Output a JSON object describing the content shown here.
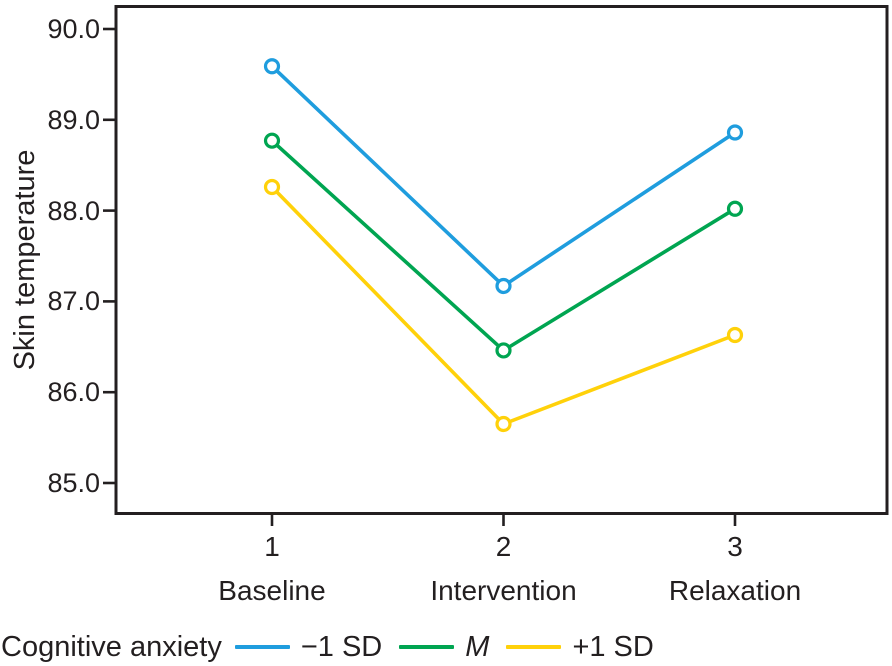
{
  "chart_data": {
    "type": "line",
    "title": "",
    "xlabel": "",
    "ylabel": "Skin temperature",
    "x": [
      1,
      2,
      3
    ],
    "x_tick_labels": [
      "1",
      "2",
      "3"
    ],
    "x_category_labels": [
      "Baseline",
      "Intervention",
      "Relaxation"
    ],
    "y_ticks": [
      90,
      89,
      88,
      87,
      86,
      85
    ],
    "y_tick_labels": [
      "90.0",
      "89.0",
      "88.0",
      "87.0",
      "86.0",
      "85.0"
    ],
    "ylim": [
      84.7,
      90.3
    ],
    "xlim": [
      0.32,
      3.66
    ],
    "grid": false,
    "legend_position": "bottom-left",
    "marker": "open-circle",
    "series": [
      {
        "id": "minus-1-sd",
        "name": "−1 SD",
        "color": "#1f9dde",
        "values": [
          89.59,
          87.17,
          88.86
        ],
        "label_style": "normal"
      },
      {
        "id": "mean",
        "name": "M",
        "color": "#00a551",
        "values": [
          88.77,
          86.46,
          88.02
        ],
        "label_style": "italic"
      },
      {
        "id": "plus-1-sd",
        "name": "+1 SD",
        "color": "#ffd10a",
        "values": [
          88.26,
          85.65,
          86.63
        ],
        "label_style": "normal"
      }
    ]
  },
  "legend": {
    "title": "Cognitive anxiety"
  },
  "colors": {
    "axis": "#231f20",
    "text": "#231f20",
    "marker_fill": "#ffffff"
  }
}
